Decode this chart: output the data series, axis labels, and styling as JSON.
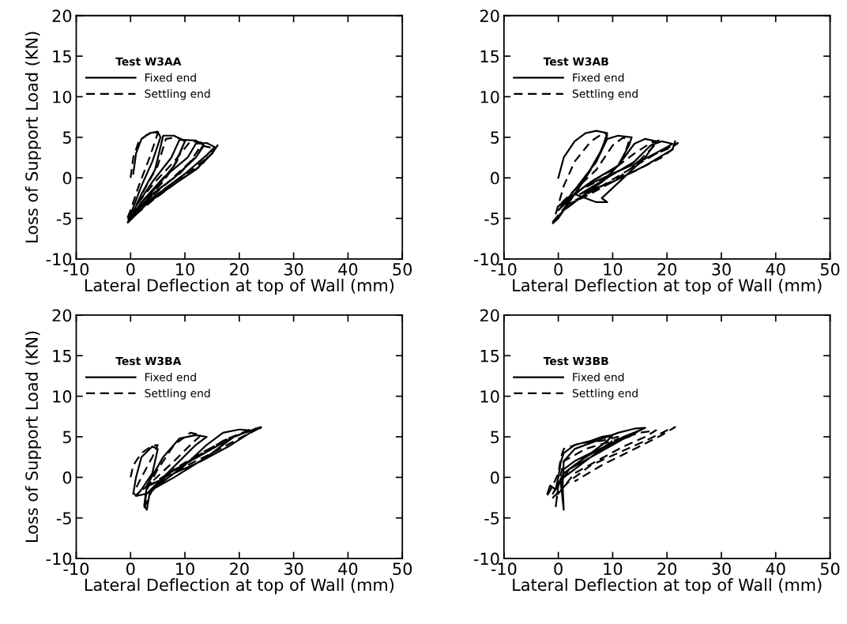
{
  "chart_data": [
    {
      "type": "line",
      "legend_title": "Test W3AA",
      "xlabel": "Lateral Deflection at top of Wall (mm)",
      "ylabel": "Loss of Support Load (KN)",
      "xlim": [
        -10,
        50
      ],
      "ylim": [
        -10,
        20
      ],
      "xticks": [
        -10,
        0,
        10,
        20,
        30,
        40,
        50
      ],
      "yticks": [
        -10,
        -5,
        0,
        5,
        10,
        15,
        20
      ],
      "legend": "top left",
      "grid": false,
      "series": [
        {
          "name": "Fixed end",
          "color": "#000000",
          "line_style": "solid",
          "x": [
            0.5,
            1,
            2,
            3.5,
            5,
            5.5,
            4,
            2,
            0,
            -0.5,
            0,
            2,
            5,
            8,
            9,
            10,
            8,
            6,
            4.5,
            2,
            0,
            1,
            4,
            8,
            12,
            13.5,
            12,
            9,
            7.5,
            4,
            1,
            -0.3,
            2,
            6,
            10,
            14,
            15.5,
            14,
            12,
            10.5,
            6,
            2,
            0,
            3,
            8,
            12,
            15,
            16
          ],
          "values": [
            0.5,
            3,
            4.8,
            5.5,
            5.7,
            5,
            2,
            -1,
            -4.5,
            -5.5,
            -5,
            -3,
            -1,
            1.5,
            3,
            4.5,
            5.2,
            5.2,
            1,
            -2,
            -5,
            -4,
            -2,
            0,
            2.5,
            4,
            4.6,
            4.7,
            2.5,
            -0.5,
            -3.5,
            -5.4,
            -3.5,
            -1.5,
            0.5,
            2.8,
            3.8,
            4.3,
            4.2,
            2.5,
            0,
            -3,
            -5.2,
            -3.2,
            -0.8,
            1,
            3,
            4
          ]
        },
        {
          "name": "Settling end",
          "color": "#000000",
          "line_style": "dashed",
          "x": [
            0,
            0.5,
            1.5,
            3,
            4.5,
            5,
            3.5,
            1.5,
            0,
            -0.8,
            0.5,
            3,
            6,
            8.5,
            10,
            8.5,
            6.5,
            5,
            2.5,
            0.5,
            -0.5,
            2,
            5,
            9,
            12.5,
            13.5,
            11,
            8,
            4.5,
            1.5,
            0,
            3,
            7,
            11,
            15,
            15.5,
            13,
            11,
            7,
            3,
            0.5,
            4,
            9,
            13,
            15
          ],
          "values": [
            0,
            2.5,
            4.5,
            5.3,
            5.6,
            5.5,
            2.5,
            -1,
            -4,
            -5.3,
            -4.5,
            -2.5,
            -0.5,
            2,
            4.6,
            5,
            4.8,
            1.5,
            -1.5,
            -4,
            -5.5,
            -3.5,
            -1.5,
            0.5,
            3,
            4.3,
            4.5,
            2,
            -0.5,
            -3,
            -5,
            -3,
            -1,
            0.8,
            3,
            3.6,
            4,
            2,
            -0.5,
            -2.8,
            -4.8,
            -2.8,
            -0.3,
            1.5,
            3.3
          ]
        }
      ]
    },
    {
      "type": "line",
      "legend_title": "Test W3AB",
      "xlabel": "Lateral Deflection at top of Wall (mm)",
      "xlim": [
        -10,
        50
      ],
      "ylim": [
        -10,
        20
      ],
      "xticks": [
        -10,
        0,
        10,
        20,
        30,
        40,
        50
      ],
      "yticks": [
        -10,
        -5,
        0,
        5,
        10,
        15,
        20
      ],
      "legend": "top left",
      "grid": false,
      "series": [
        {
          "name": "Fixed end",
          "color": "#000000",
          "line_style": "solid",
          "x": [
            0,
            1,
            3,
            5,
            7,
            9,
            8,
            5,
            2,
            0,
            -1,
            1,
            4,
            8,
            11,
            13,
            13.5,
            11,
            9,
            7,
            3,
            0,
            3,
            7,
            9,
            8,
            12,
            16,
            18,
            16,
            14,
            11,
            6,
            2,
            0,
            5,
            10,
            15,
            20,
            21,
            19,
            17,
            14,
            9,
            4,
            10,
            16,
            21,
            21.5
          ],
          "values": [
            0,
            2.5,
            4.5,
            5.5,
            5.8,
            5.5,
            3.5,
            0,
            -3,
            -5,
            -5.6,
            -4,
            -2.5,
            -0.5,
            1.5,
            4,
            5,
            5.2,
            4.8,
            2,
            -1.5,
            -4,
            -2,
            -3,
            -3,
            -2.5,
            0,
            2.5,
            4.5,
            4.8,
            4.2,
            1.5,
            -0.5,
            -2.5,
            -3.5,
            -1,
            0.5,
            2,
            3.8,
            4.2,
            4.5,
            4,
            2,
            0,
            -2,
            -0.5,
            1.5,
            3.5,
            4.5
          ]
        },
        {
          "name": "Settling end",
          "color": "#000000",
          "line_style": "dashed",
          "x": [
            -0.5,
            1,
            3,
            6,
            8.5,
            9,
            7,
            4,
            1,
            -1,
            1,
            5,
            9,
            12,
            13,
            12,
            10,
            7,
            3,
            0,
            2,
            6,
            10,
            14,
            17,
            18.5,
            17,
            14,
            10,
            5,
            1,
            4,
            9,
            14,
            19,
            22,
            21,
            18,
            13,
            8,
            3,
            8,
            14,
            19,
            22
          ],
          "values": [
            -4.5,
            -1,
            2,
            4.5,
            5.6,
            5.2,
            2,
            -1,
            -3.8,
            -5.4,
            -4,
            -2,
            0,
            2.5,
            4.5,
            5,
            4,
            1,
            -1.5,
            -3.5,
            -2.5,
            -0.5,
            1,
            3,
            4.3,
            4.6,
            3.5,
            1.5,
            -0.5,
            -2.3,
            -3.5,
            -1.5,
            0.2,
            1.8,
            3.3,
            4.3,
            3.8,
            3,
            1,
            -1,
            -2.8,
            -1,
            0.8,
            2.5,
            4
          ]
        }
      ]
    },
    {
      "type": "line",
      "legend_title": "Test W3BA",
      "xlabel": "Lateral Deflection at top of Wall (mm)",
      "ylabel": "Loss of Support Load (KN)",
      "xlim": [
        -10,
        50
      ],
      "ylim": [
        -10,
        20
      ],
      "xticks": [
        -10,
        0,
        10,
        20,
        30,
        40,
        50
      ],
      "yticks": [
        -10,
        -5,
        0,
        5,
        10,
        15,
        20
      ],
      "legend": "top left",
      "grid": false,
      "series": [
        {
          "name": "Fixed end",
          "color": "#000000",
          "line_style": "solid",
          "x": [
            0.5,
            1,
            2,
            4,
            5,
            4,
            2,
            1,
            3,
            6,
            9,
            12,
            14,
            12,
            9,
            6,
            3,
            2.5,
            3,
            3.5,
            7,
            11,
            15,
            19,
            22,
            20,
            17,
            14,
            10,
            6,
            3,
            8,
            13,
            18,
            22,
            24,
            23,
            19,
            14,
            8,
            4
          ],
          "values": [
            -2,
            0,
            2.5,
            3.8,
            3.5,
            0.5,
            -1.5,
            -2.3,
            -2,
            0,
            2,
            4,
            5,
            5.2,
            4.8,
            2.5,
            -1,
            -3.5,
            -4,
            -2,
            0.5,
            2,
            3.5,
            5,
            5.8,
            5.9,
            5.5,
            4,
            1.5,
            -0.5,
            -2,
            0.5,
            2,
            3.8,
            5.5,
            6.2,
            6,
            5,
            2.5,
            0,
            -1.5
          ]
        },
        {
          "name": "Settling end",
          "color": "#000000",
          "line_style": "dashed",
          "x": [
            0,
            0.5,
            2,
            4,
            5,
            4,
            2,
            0.5,
            1,
            4,
            8,
            11,
            13,
            11,
            8,
            5,
            3,
            2.5,
            4,
            8,
            13,
            18,
            22,
            24,
            21,
            17,
            12,
            7,
            3,
            9,
            15,
            20,
            23.5
          ],
          "values": [
            0,
            1.5,
            3,
            3.9,
            4,
            2.5,
            0,
            -2,
            -2.2,
            -0.5,
            2,
            4,
            5.2,
            5.5,
            4,
            1,
            -1.5,
            -3.8,
            -1.5,
            1,
            3,
            4.8,
            5.9,
            6.1,
            5.5,
            4.5,
            2.5,
            0.5,
            -1.2,
            1,
            3,
            4.8,
            6
          ]
        }
      ]
    },
    {
      "type": "line",
      "legend_title": "Test W3BB",
      "xlabel": "Lateral Deflection at top of Wall (mm)",
      "xlim": [
        -10,
        50
      ],
      "ylim": [
        -10,
        20
      ],
      "xticks": [
        -10,
        0,
        10,
        20,
        30,
        40,
        50
      ],
      "yticks": [
        -10,
        -5,
        0,
        5,
        10,
        15,
        20
      ],
      "legend": "top left",
      "grid": false,
      "series": [
        {
          "name": "Fixed end",
          "color": "#000000",
          "line_style": "solid",
          "x": [
            -2,
            -1.5,
            -0.5,
            0,
            0.5,
            1,
            3,
            6,
            8,
            10,
            9,
            6,
            3,
            1,
            0.5,
            1,
            0.8,
            1,
            3,
            7,
            11,
            14,
            16,
            14,
            10,
            6,
            2,
            0,
            -1,
            1,
            5,
            9,
            13,
            15,
            12,
            8,
            4,
            1
          ],
          "values": [
            -2,
            -1,
            -1.5,
            0,
            2,
            3,
            4,
            4.5,
            5,
            5.2,
            4.5,
            3,
            2,
            1,
            -1,
            -4,
            -1,
            2,
            3.5,
            4.5,
            5.5,
            6,
            6.1,
            5.5,
            4,
            2.5,
            1,
            -1,
            -2,
            0.5,
            2.5,
            4,
            5,
            5.8,
            5,
            3.5,
            1.5,
            0
          ]
        },
        {
          "name": "Settling end",
          "color": "#000000",
          "line_style": "dashed",
          "x": [
            -2,
            -1,
            0,
            0.5,
            1,
            4,
            8,
            11,
            9,
            5,
            2,
            0,
            -0.5,
            0,
            1,
            5,
            10,
            15,
            18,
            16,
            12,
            7,
            3,
            0,
            -1,
            2,
            6,
            11,
            16,
            20,
            21.5,
            19,
            14,
            8,
            3
          ],
          "values": [
            -2.2,
            -1,
            0.5,
            2.5,
            3.5,
            4.2,
            4.5,
            5,
            4,
            2.5,
            1,
            -1,
            -3.8,
            -1,
            2,
            3.5,
            4.5,
            5.5,
            5.8,
            5,
            3.8,
            2,
            0.5,
            -2,
            -2.5,
            -0.5,
            1.5,
            3,
            4.5,
            5.8,
            6.2,
            5.2,
            3.5,
            1.5,
            -0.5
          ]
        }
      ]
    }
  ]
}
